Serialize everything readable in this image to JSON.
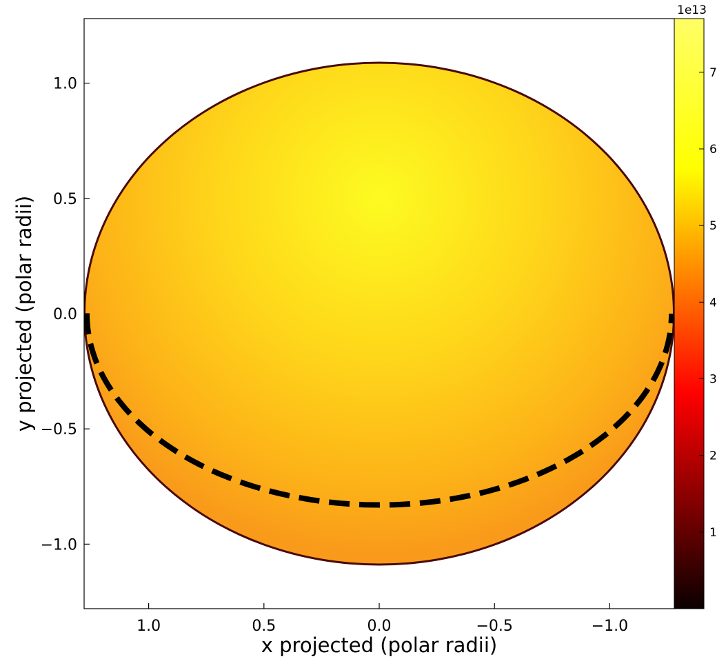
{
  "chart_data": {
    "type": "heatmap",
    "title": "",
    "xlabel": "x projected (polar radii)",
    "ylabel": "y projected (polar radii)",
    "x_axis_inverted": true,
    "xlim": [
      1.28,
      -1.28
    ],
    "ylim": [
      -1.28,
      1.28
    ],
    "x_ticks": [
      1.0,
      0.5,
      0.0,
      -0.5,
      -1.0
    ],
    "x_tick_labels": [
      "1.0",
      "0.5",
      "0.0",
      "−0.5",
      "−1.0"
    ],
    "y_ticks": [
      1.0,
      0.5,
      0.0,
      -0.5,
      -1.0
    ],
    "y_tick_labels": [
      "1.0",
      "0.5",
      "0.0",
      "−0.5",
      "−1.0"
    ],
    "grid": false,
    "disk": {
      "shape": "ellipse",
      "center": [
        0.0,
        0.0
      ],
      "semi_major_axis": 1.28,
      "semi_minor_axis": 1.09,
      "peak_value_location": [
        0.0,
        0.5
      ],
      "peak_value": 77000000000000.0,
      "limb_value": 55000000000000.0
    },
    "equator_line": {
      "style": "dashed",
      "color": "#000000",
      "y_at_center": -0.83,
      "y_at_limb": 0.0
    },
    "colorbar": {
      "colormap": "hot",
      "range": [
        0,
        77000000000000.0
      ],
      "offset_text": "1e13",
      "ticks": [
        1,
        2,
        3,
        4,
        5,
        6,
        7
      ],
      "tick_labels": [
        "1",
        "2",
        "3",
        "4",
        "5",
        "6",
        "7"
      ]
    }
  }
}
